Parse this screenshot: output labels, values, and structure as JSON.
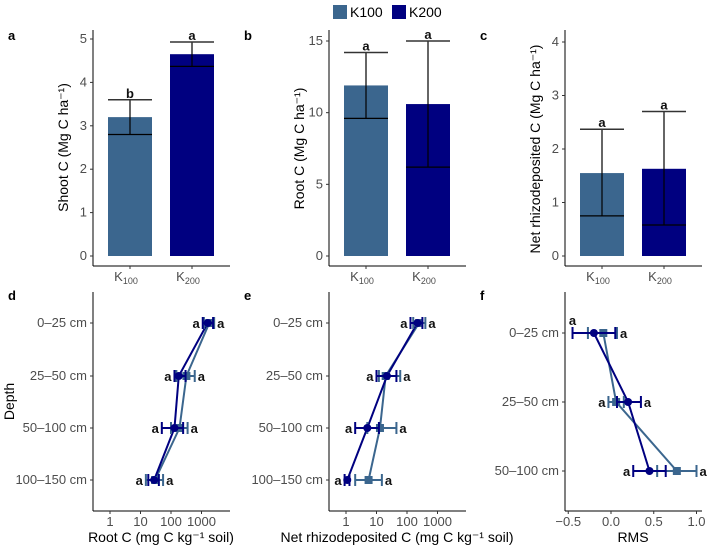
{
  "colors": {
    "K100": "#3b668e",
    "K200": "#000080"
  },
  "legend": [
    {
      "key": "K100",
      "label": "K100"
    },
    {
      "key": "K200",
      "label": "K200"
    }
  ],
  "chart_data": [
    {
      "panel": "a",
      "type": "bar",
      "categories": [
        "K100",
        "K200"
      ],
      "values": [
        3.2,
        4.65
      ],
      "err_low": [
        2.8,
        4.37
      ],
      "err_high": [
        3.6,
        4.93
      ],
      "letters": [
        "b",
        "a"
      ],
      "ylabel": "Shoot C (Mg C ha⁻¹)",
      "ylim": [
        0,
        5
      ],
      "yticks": [
        0,
        1,
        2,
        3,
        4,
        5
      ],
      "grid": false
    },
    {
      "panel": "b",
      "type": "bar",
      "categories": [
        "K100",
        "K200"
      ],
      "values": [
        11.9,
        10.6
      ],
      "err_low": [
        9.6,
        6.2
      ],
      "err_high": [
        14.2,
        15.0
      ],
      "letters": [
        "a",
        "a"
      ],
      "ylabel": "Root C (Mg C ha⁻¹)",
      "ylim": [
        0,
        15
      ],
      "yticks": [
        0,
        5,
        10,
        15
      ],
      "grid": false
    },
    {
      "panel": "c",
      "type": "bar",
      "categories": [
        "K100",
        "K200"
      ],
      "values": [
        1.55,
        1.63
      ],
      "err_low": [
        0.75,
        0.58
      ],
      "err_high": [
        2.37,
        2.7
      ],
      "letters": [
        "a",
        "a"
      ],
      "ylabel": "Net rhizodeposited C (Mg C ha⁻¹)",
      "ylim": [
        0,
        4
      ],
      "yticks": [
        0,
        1,
        2,
        3,
        4
      ],
      "grid": false
    },
    {
      "panel": "d",
      "type": "line",
      "xscale": "log",
      "xlabel": "Root C (mg C kg⁻¹ soil)",
      "ylabel": "Depth",
      "categories": [
        "0–25 cm",
        "25–50 cm",
        "50–100 cm",
        "100–150 cm"
      ],
      "xticks": [
        "1",
        "10",
        "100",
        "1000"
      ],
      "series": [
        {
          "name": "K100",
          "values": [
            1800,
            320,
            190,
            30
          ],
          "err_low": [
            1200,
            150,
            100,
            15
          ],
          "err_high": [
            2600,
            600,
            350,
            55
          ]
        },
        {
          "name": "K200",
          "values": [
            1600,
            180,
            130,
            28
          ],
          "err_low": [
            1100,
            130,
            50,
            18
          ],
          "err_high": [
            2400,
            300,
            250,
            40
          ]
        }
      ],
      "letters": [
        [
          "a",
          "a"
        ],
        [
          "a",
          "a"
        ],
        [
          "a",
          "a"
        ],
        [
          "a",
          "a"
        ]
      ]
    },
    {
      "panel": "e",
      "type": "line",
      "xscale": "log",
      "xlabel": "Net rhizodeposited C (mg C kg⁻¹ soil)",
      "ylabel": "",
      "categories": [
        "0–25 cm",
        "25–50 cm",
        "50–100 cm",
        "100–150 cm"
      ],
      "xticks": [
        "1",
        "10",
        "100",
        "1000"
      ],
      "series": [
        {
          "name": "K100",
          "values": [
            250,
            20,
            13,
            5.5
          ],
          "err_low": [
            160,
            12,
            5,
            2
          ],
          "err_high": [
            400,
            60,
            45,
            15
          ]
        },
        {
          "name": "K200",
          "values": [
            220,
            22,
            5,
            1.1
          ],
          "err_low": [
            130,
            10,
            2,
            0.9
          ],
          "err_high": [
            320,
            45,
            12,
            1.3
          ]
        }
      ],
      "letters": [
        [
          "a",
          "a"
        ],
        [
          "a",
          "a"
        ],
        [
          "a",
          "a"
        ],
        [
          "a",
          "a"
        ]
      ]
    },
    {
      "panel": "f",
      "type": "line",
      "xscale": "linear",
      "xlabel": "RMS",
      "ylabel": "",
      "categories": [
        "0–25 cm",
        "25–50 cm",
        "50–100 cm"
      ],
      "xticks": [
        "−0.5",
        "0.0",
        "0.5",
        "1.0"
      ],
      "xlim": [
        -0.5,
        1.05
      ],
      "series": [
        {
          "name": "K100",
          "values": [
            -0.09,
            0.06,
            0.77
          ],
          "err_low": [
            -0.27,
            -0.03,
            0.54
          ],
          "err_high": [
            0.07,
            0.15,
            1.0
          ]
        },
        {
          "name": "K200",
          "values": [
            -0.2,
            0.2,
            0.45
          ],
          "err_low": [
            -0.45,
            0.07,
            0.26
          ],
          "err_high": [
            0.05,
            0.35,
            0.64
          ]
        }
      ],
      "letters": [
        [
          "a",
          "a"
        ],
        [
          "a",
          "a"
        ],
        [
          "a",
          "a"
        ]
      ]
    }
  ]
}
